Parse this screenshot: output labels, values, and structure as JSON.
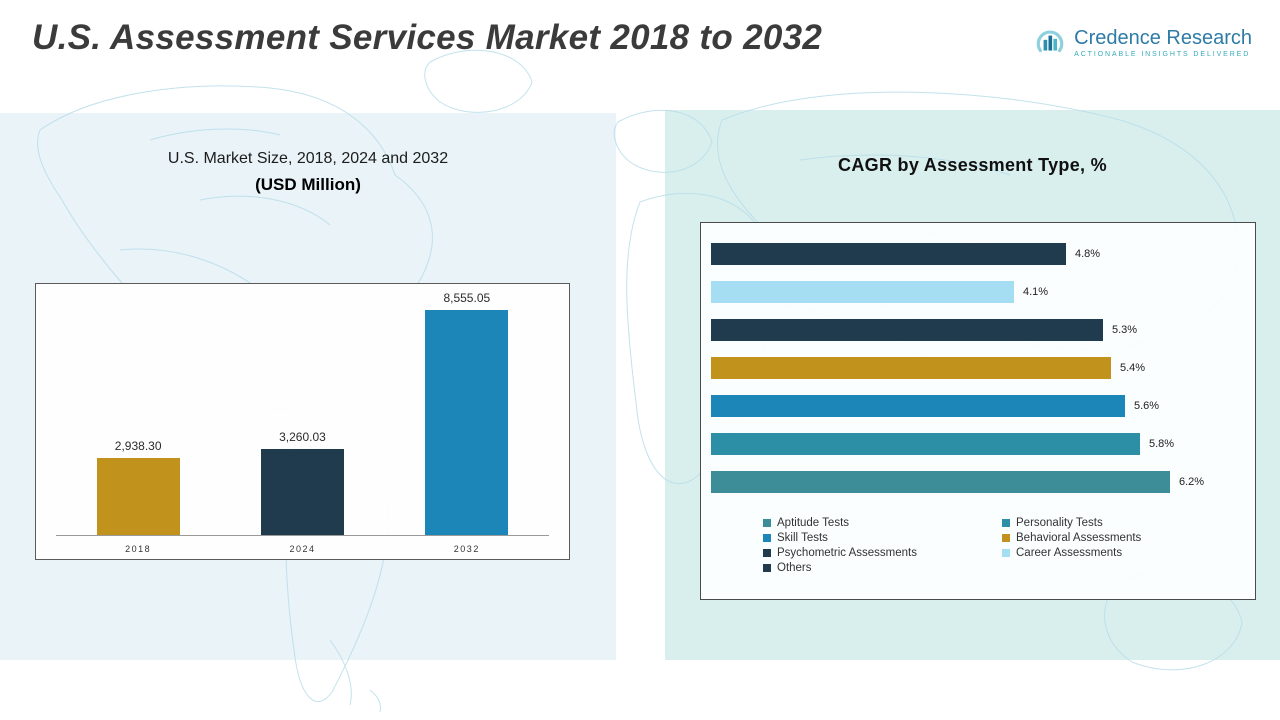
{
  "header": {
    "title": "U.S. Assessment Services Market 2018 to 2032",
    "logo": {
      "brand": "Credence Research",
      "tagline": "Actionable Insights Delivered"
    }
  },
  "left_panel": {
    "subtitle_line1": "U.S. Market Size, 2018, 2024 and 2032",
    "subtitle_line2": "(USD Million)"
  },
  "right_panel": {
    "title": "CAGR by Assessment Type, %"
  },
  "colors": {
    "gold": "#C2931C",
    "dark_navy": "#1F3B4D",
    "blue": "#1C86B8",
    "teal": "#3D8D98",
    "teal_blue": "#2C8FA6",
    "light_sky": "#A5DDF3",
    "panel_left_bg": "#E9F3F8",
    "panel_right_bg": "#D8EFEE"
  },
  "chart_data": [
    {
      "type": "bar",
      "orientation": "vertical",
      "title": "U.S. Market Size, 2018, 2024 and 2032 (USD Million)",
      "categories": [
        "2018",
        "2024",
        "2032"
      ],
      "values": [
        2938.3,
        3260.03,
        8555.05
      ],
      "value_labels": [
        "2,938.30",
        "3,260.03",
        "8,555.05"
      ],
      "bar_colors": [
        "#C2931C",
        "#1F3B4D",
        "#1C86B8"
      ],
      "ylabel": "USD Million",
      "ylim": [
        0,
        9000
      ],
      "grid": false
    },
    {
      "type": "bar",
      "orientation": "horizontal",
      "title": "CAGR by Assessment Type, %",
      "categories": [
        "Others",
        "Career Assessments",
        "Psychometric Assessments",
        "Behavioral Assessments",
        "Skill Tests",
        "Personality Tests",
        "Aptitude Tests"
      ],
      "values": [
        4.8,
        4.1,
        5.3,
        5.4,
        5.6,
        5.8,
        6.2
      ],
      "value_labels": [
        "4.8%",
        "4.1%",
        "5.3%",
        "5.4%",
        "5.6%",
        "5.8%",
        "6.2%"
      ],
      "bar_colors": [
        "#1F3B4D",
        "#A5DDF3",
        "#1F3B4D",
        "#C2931C",
        "#1C86B8",
        "#2C8FA6",
        "#3D8D98"
      ],
      "xlim": [
        0,
        6.6
      ],
      "grid": false,
      "legend_position": "bottom",
      "legend": [
        {
          "label": "Aptitude Tests",
          "color": "#3D8D98"
        },
        {
          "label": "Personality Tests",
          "color": "#2C8FA6"
        },
        {
          "label": "Skill Tests",
          "color": "#1C86B8"
        },
        {
          "label": "Behavioral Assessments",
          "color": "#C2931C"
        },
        {
          "label": "Psychometric Assessments",
          "color": "#1F3B4D"
        },
        {
          "label": "Career Assessments",
          "color": "#A5DDF3"
        },
        {
          "label": "Others",
          "color": "#1F3B4D"
        }
      ]
    }
  ]
}
